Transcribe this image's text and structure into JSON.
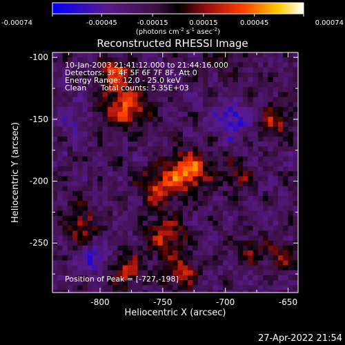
{
  "colorbar": {
    "ticks": [
      -0.00074,
      -0.00045,
      -0.00015,
      0.00015,
      0.00045,
      0.00074
    ],
    "tick_labels": [
      "-0.00074",
      "-0.00045",
      "-0.00015",
      "0.00015",
      "0.00045",
      "0.00074"
    ],
    "units_prefix": "(photons cm",
    "units_exp1": "-2",
    "units_mid": " s",
    "units_exp2": "-1",
    "units_mid2": " asec",
    "units_exp3": "-2",
    "units_suffix": ")",
    "range": [
      -0.00074,
      0.00074
    ]
  },
  "info": {
    "time_range": "10-Jan-2003 21:41:12.000 to 21:44:16.000",
    "detectors": "Detectors: 3F 4F 5F 6F 7F 8F, Att 0",
    "energy": "Energy Range: 12.0 - 25.0 keV",
    "method": "Clean",
    "total_counts": "Total counts: 5.35E+03",
    "peak": "Position of Peak = [-727,-198]"
  },
  "timestamp": "27-Apr-2022 21:54",
  "colors": {
    "background": "#000000",
    "foreground": "#ffffff"
  },
  "chart_data": {
    "type": "heatmap",
    "title": "Reconstructed RHESSI Image",
    "xlabel": "Heliocentric X (arcsec)",
    "ylabel": "Heliocentric Y (arcsec)",
    "xlim": [
      -838,
      -642
    ],
    "ylim": [
      -290,
      -96
    ],
    "x_ticks": [
      -800,
      -750,
      -700,
      -650
    ],
    "x_tick_labels": [
      "-800",
      "-750",
      "-700",
      "-650"
    ],
    "y_ticks": [
      -100,
      -150,
      -200,
      -250
    ],
    "y_tick_labels": [
      "-100",
      "-150",
      "-200",
      "-250"
    ],
    "peak_position": [
      -727,
      -198
    ],
    "grid": false,
    "sources": [
      {
        "x": -730,
        "y": -192,
        "amp": 0.0007,
        "sigma": 11
      },
      {
        "x": -780,
        "y": -140,
        "amp": 0.00058,
        "sigma": 12
      },
      {
        "x": -788,
        "y": -112,
        "amp": 0.0005,
        "sigma": 9
      },
      {
        "x": -755,
        "y": -205,
        "amp": 0.0005,
        "sigma": 10
      },
      {
        "x": -748,
        "y": -245,
        "amp": 0.00045,
        "sigma": 11
      },
      {
        "x": -778,
        "y": -272,
        "amp": 0.00042,
        "sigma": 9
      },
      {
        "x": -735,
        "y": -275,
        "amp": 0.00045,
        "sigma": 9
      },
      {
        "x": -815,
        "y": -235,
        "amp": 0.00038,
        "sigma": 10
      },
      {
        "x": -690,
        "y": -195,
        "amp": 0.0003,
        "sigma": 9
      },
      {
        "x": -660,
        "y": -150,
        "amp": 0.0004,
        "sigma": 9
      },
      {
        "x": -655,
        "y": -260,
        "amp": 0.00035,
        "sigma": 8
      },
      {
        "x": -680,
        "y": -255,
        "amp": 0.00028,
        "sigma": 8
      },
      {
        "x": -700,
        "y": -100,
        "amp": 0.0002,
        "sigma": 10
      },
      {
        "x": -695,
        "y": -150,
        "amp": -0.0004,
        "sigma": 10
      },
      {
        "x": -805,
        "y": -262,
        "amp": -0.00035,
        "sigma": 8
      },
      {
        "x": -820,
        "y": -150,
        "amp": -0.0002,
        "sigma": 9
      }
    ]
  }
}
